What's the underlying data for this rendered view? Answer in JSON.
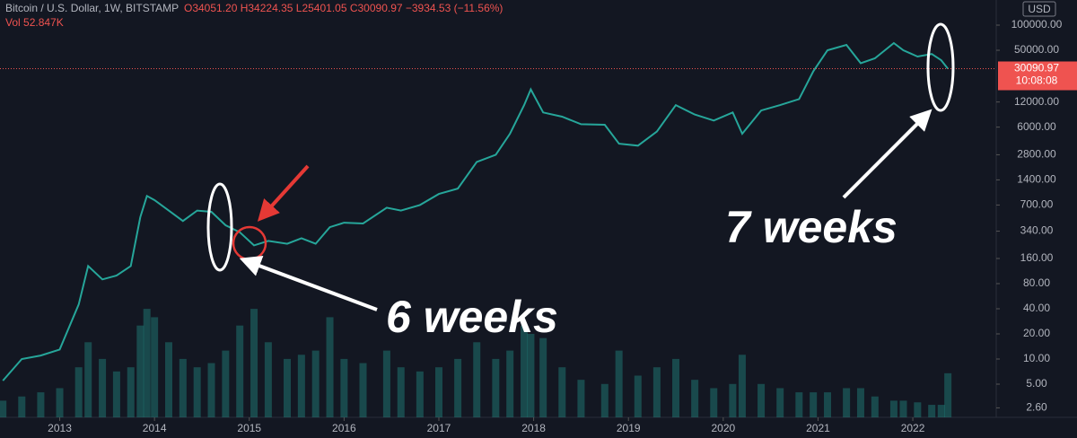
{
  "chart_data": {
    "type": "line",
    "title": "Bitcoin / U.S. Dollar, 1W, BITSTAMP",
    "subtitle": "O34051.20 H34224.35 L25401.05 C30090.97 −3934.53 (−11.56%)",
    "volume_label": "Vol 52.847K",
    "currency": "USD",
    "countdown": "10:08:08",
    "annotations": [
      "6 weeks",
      "7 weeks"
    ],
    "log_scale": true,
    "grid": false,
    "x": [
      2012.4,
      2012.6,
      2012.8,
      2013.0,
      2013.2,
      2013.3,
      2013.45,
      2013.6,
      2013.75,
      2013.85,
      2013.92,
      2014.0,
      2014.15,
      2014.3,
      2014.45,
      2014.6,
      2014.75,
      2014.9,
      2015.05,
      2015.2,
      2015.4,
      2015.55,
      2015.7,
      2015.85,
      2016.0,
      2016.2,
      2016.45,
      2016.6,
      2016.8,
      2017.0,
      2017.2,
      2017.4,
      2017.6,
      2017.75,
      2017.9,
      2017.97,
      2018.1,
      2018.3,
      2018.5,
      2018.75,
      2018.9,
      2019.1,
      2019.3,
      2019.5,
      2019.7,
      2019.9,
      2020.1,
      2020.2,
      2020.4,
      2020.6,
      2020.8,
      2020.95,
      2021.1,
      2021.3,
      2021.45,
      2021.6,
      2021.8,
      2021.9,
      2022.05,
      2022.2,
      2022.3,
      2022.37
    ],
    "series": [
      {
        "name": "BTCUSD",
        "color": "#26a69a",
        "values": [
          5.5,
          10,
          11,
          13,
          45,
          130,
          90,
          100,
          130,
          500,
          900,
          800,
          600,
          450,
          600,
          580,
          400,
          330,
          230,
          260,
          240,
          280,
          240,
          380,
          430,
          420,
          650,
          600,
          700,
          950,
          1100,
          2300,
          2800,
          5000,
          11000,
          17000,
          9000,
          8000,
          6500,
          6400,
          3800,
          3600,
          5300,
          11000,
          8500,
          7200,
          9000,
          5000,
          9500,
          11000,
          13000,
          28000,
          50000,
          58000,
          35000,
          40000,
          61000,
          50000,
          42000,
          45000,
          38000,
          30090.97
        ]
      },
      {
        "name": "Vol",
        "color": "#26a69a",
        "axis": "y2",
        "values": [
          20,
          25,
          30,
          35,
          60,
          90,
          70,
          55,
          60,
          110,
          130,
          120,
          90,
          70,
          60,
          65,
          80,
          110,
          130,
          90,
          70,
          75,
          80,
          120,
          70,
          65,
          80,
          60,
          55,
          60,
          70,
          90,
          70,
          80,
          110,
          100,
          95,
          60,
          45,
          40,
          80,
          50,
          60,
          70,
          45,
          35,
          40,
          75,
          40,
          35,
          30,
          30,
          30,
          35,
          35,
          25,
          20,
          20,
          18,
          15,
          15,
          52.847
        ]
      }
    ],
    "xlim": [
      2012.37,
      2022.88
    ],
    "xticks": [
      2013,
      2014,
      2015,
      2016,
      2017,
      2018,
      2019,
      2020,
      2021,
      2022
    ],
    "ylim": [
      2,
      200000
    ],
    "yticks": [
      {
        "value": 100000,
        "label": "100000.00"
      },
      {
        "value": 50000,
        "label": "50000.00"
      },
      {
        "value": 12000,
        "label": "12000.00"
      },
      {
        "value": 6000,
        "label": "6000.00"
      },
      {
        "value": 2800,
        "label": "2800.00"
      },
      {
        "value": 1400,
        "label": "1400.00"
      },
      {
        "value": 700,
        "label": "700.00"
      },
      {
        "value": 340,
        "label": "340.00"
      },
      {
        "value": 160,
        "label": "160.00"
      },
      {
        "value": 80,
        "label": "80.00"
      },
      {
        "value": 40,
        "label": "40.00"
      },
      {
        "value": 20,
        "label": "20.00"
      },
      {
        "value": 10,
        "label": "10.00"
      },
      {
        "value": 5,
        "label": "5.00"
      },
      {
        "value": 2.6,
        "label": "2.60"
      }
    ],
    "y2lim": [
      0,
      500
    ]
  }
}
